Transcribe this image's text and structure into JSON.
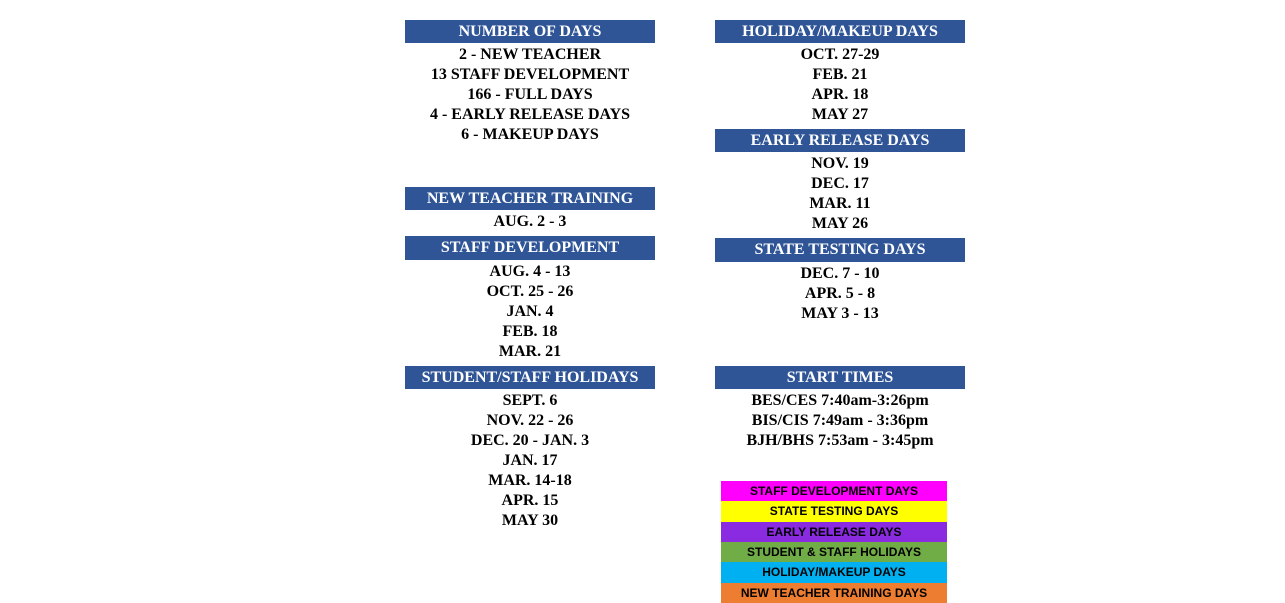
{
  "colors": {
    "header_bg": "#2f5597",
    "header_text": "#ffffff",
    "body_text": "#000000",
    "legend": {
      "staff_dev": "#ff00ff",
      "state_testing": "#ffff00",
      "early_release": "#8a2be2",
      "holidays": "#70ad47",
      "holiday_makeup": "#00b0f0",
      "new_teacher": "#ed7d31"
    }
  },
  "col1": {
    "number_of_days": {
      "title": "NUMBER OF DAYS",
      "items": [
        "2 - NEW TEACHER",
        "13 STAFF DEVELOPMENT",
        "166 - FULL DAYS",
        "4 - EARLY RELEASE DAYS",
        "6 - MAKEUP DAYS"
      ]
    },
    "new_teacher_training": {
      "title": "NEW TEACHER TRAINING",
      "items": [
        "AUG. 2 - 3"
      ]
    },
    "staff_development": {
      "title": "STAFF DEVELOPMENT",
      "items": [
        "AUG. 4 - 13",
        "OCT. 25 - 26",
        "JAN. 4",
        "FEB. 18",
        "MAR. 21"
      ]
    },
    "student_staff_holidays": {
      "title": "STUDENT/STAFF HOLIDAYS",
      "items": [
        "SEPT. 6",
        "NOV. 22 - 26",
        "DEC. 20 - JAN. 3",
        "JAN. 17",
        "MAR. 14-18",
        "APR. 15",
        "MAY 30"
      ]
    }
  },
  "col2": {
    "holiday_makeup": {
      "title": "HOLIDAY/MAKEUP DAYS",
      "items": [
        "OCT. 27-29",
        "FEB. 21",
        "APR. 18",
        "MAY 27"
      ]
    },
    "early_release": {
      "title": "EARLY RELEASE DAYS",
      "items": [
        "NOV. 19",
        "DEC. 17",
        "MAR. 11",
        "MAY 26"
      ]
    },
    "state_testing": {
      "title": "STATE TESTING DAYS",
      "items": [
        "DEC. 7 - 10",
        "APR. 5 - 8",
        "MAY 3 - 13"
      ]
    },
    "start_times": {
      "title": "START TIMES",
      "items": [
        "BES/CES 7:40am-3:26pm",
        "BIS/CIS 7:49am - 3:36pm",
        "BJH/BHS 7:53am - 3:45pm"
      ]
    }
  },
  "legend": {
    "items": [
      {
        "label": "STAFF DEVELOPMENT DAYS",
        "color_key": "staff_dev"
      },
      {
        "label": "STATE TESTING DAYS",
        "color_key": "state_testing"
      },
      {
        "label": "EARLY RELEASE DAYS",
        "color_key": "early_release"
      },
      {
        "label": "STUDENT & STAFF HOLIDAYS",
        "color_key": "holidays"
      },
      {
        "label": "HOLIDAY/MAKEUP DAYS",
        "color_key": "holiday_makeup"
      },
      {
        "label": "NEW TEACHER TRAINING DAYS",
        "color_key": "new_teacher"
      }
    ]
  }
}
